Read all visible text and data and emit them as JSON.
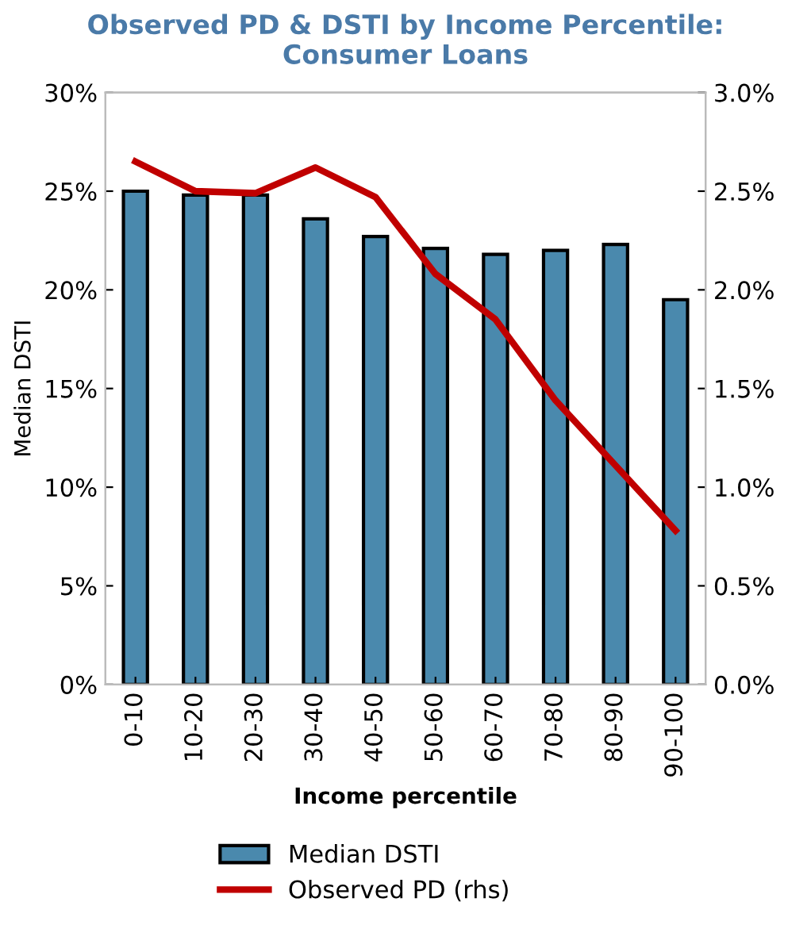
{
  "chart_data": {
    "type": "bar",
    "title": "Observed PD & DSTI by Income Percentile:\nConsumer Loans",
    "xlabel": "Income percentile",
    "ylabel": "Median DSTI",
    "categories": [
      "0-10",
      "10-20",
      "20-30",
      "30-40",
      "40-50",
      "50-60",
      "60-70",
      "70-80",
      "80-90",
      "90-100"
    ],
    "series": [
      {
        "name": "Median DSTI",
        "color": "#4a89ad",
        "values": [
          25.0,
          24.8,
          24.8,
          23.6,
          22.7,
          22.1,
          21.8,
          22.0,
          22.3,
          19.5
        ]
      },
      {
        "name": "Observed PD (rhs)",
        "type": "line",
        "axis": "y2",
        "color": "#c00000",
        "values": [
          2.65,
          2.5,
          2.49,
          2.62,
          2.47,
          2.08,
          1.85,
          1.44,
          1.11,
          0.78
        ]
      }
    ],
    "ylim": [
      0,
      30
    ],
    "yticks": [
      {
        "value": 0,
        "label": "0%"
      },
      {
        "value": 5,
        "label": "5%"
      },
      {
        "value": 10,
        "label": "10%"
      },
      {
        "value": 15,
        "label": "15%"
      },
      {
        "value": 20,
        "label": "20%"
      },
      {
        "value": 25,
        "label": "25%"
      },
      {
        "value": 30,
        "label": "30%"
      }
    ],
    "y2lim": [
      0,
      3
    ],
    "y2ticks": [
      {
        "value": 0,
        "label": "0.0%"
      },
      {
        "value": 0.5,
        "label": "0.5%"
      },
      {
        "value": 1,
        "label": "1.0%"
      },
      {
        "value": 1.5,
        "label": "1.5%"
      },
      {
        "value": 2,
        "label": "2.0%"
      },
      {
        "value": 2.5,
        "label": "2.5%"
      },
      {
        "value": 3,
        "label": "3.0%"
      }
    ],
    "grid": false,
    "legend": "bottom"
  }
}
